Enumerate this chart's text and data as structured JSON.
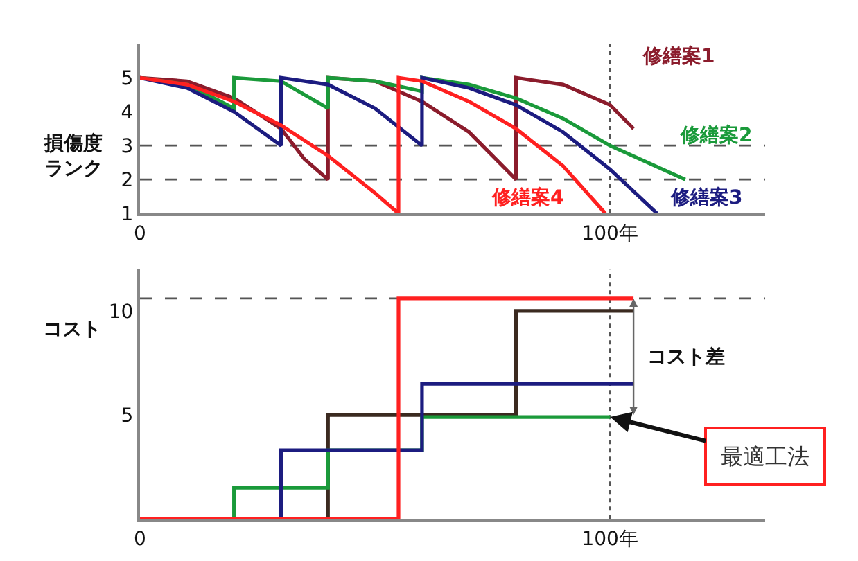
{
  "chart_data": [
    {
      "type": "line",
      "ylabel": "損傷度ランク",
      "xlim": [
        0,
        133
      ],
      "ylim": [
        1,
        6
      ],
      "xticks": [
        0,
        {
          "value": 100,
          "label": "100年"
        }
      ],
      "yticks": [
        1,
        2,
        3,
        4,
        5
      ],
      "grid": false,
      "legend": false,
      "series": [
        {
          "name": "修繕案1",
          "color": "#8b1c2c",
          "x": [
            0,
            10,
            20,
            30,
            35,
            40,
            40,
            50,
            60,
            70,
            80,
            80,
            90,
            100,
            105
          ],
          "values": [
            5,
            4.9,
            4.4,
            3.5,
            2.6,
            2.0,
            5,
            4.9,
            4.3,
            3.4,
            2.0,
            5,
            4.8,
            4.2,
            3.5
          ]
        },
        {
          "name": "修繕案2",
          "color": "#1a9a3a",
          "x": [
            0,
            10,
            20,
            20,
            30,
            40,
            40,
            50,
            60,
            60,
            70,
            80,
            90,
            100,
            116
          ],
          "values": [
            5,
            4.8,
            4.1,
            5,
            4.9,
            4.1,
            5,
            4.9,
            4.6,
            5,
            4.8,
            4.4,
            3.8,
            3.0,
            2.0
          ]
        },
        {
          "name": "修繕案3",
          "color": "#1c1c80",
          "x": [
            0,
            10,
            20,
            30,
            30,
            40,
            50,
            60,
            60,
            70,
            80,
            90,
            100,
            110
          ],
          "values": [
            5,
            4.7,
            4.0,
            3.0,
            5,
            4.8,
            4.1,
            3.0,
            5,
            4.7,
            4.2,
            3.4,
            2.3,
            1.0
          ]
        },
        {
          "name": "修繕案4",
          "color": "#ff2020",
          "x": [
            0,
            10,
            20,
            30,
            40,
            50,
            55,
            55,
            60,
            70,
            80,
            90,
            99
          ],
          "values": [
            5,
            4.8,
            4.3,
            3.6,
            2.7,
            1.6,
            1,
            5,
            4.9,
            4.3,
            3.5,
            2.4,
            1
          ]
        }
      ],
      "ref_lines": [
        {
          "axis": "y",
          "value": 3,
          "color": "#555555",
          "line_style": "dashed"
        },
        {
          "axis": "y",
          "value": 2,
          "color": "#555555",
          "line_style": "dashed"
        },
        {
          "axis": "x",
          "value": 100,
          "color": "#555555",
          "line_style": "dotted"
        }
      ]
    },
    {
      "type": "step",
      "ylabel": "コスト",
      "xlim": [
        0,
        133
      ],
      "ylim": [
        0,
        12
      ],
      "xticks": [
        0,
        {
          "value": 100,
          "label": "100年"
        }
      ],
      "yticks": [
        5,
        10
      ],
      "grid": false,
      "legend": false,
      "series": [
        {
          "color": "#3b2a20",
          "x": [
            0,
            40,
            80,
            105
          ],
          "values": [
            0,
            5,
            10,
            10
          ]
        },
        {
          "color": "#1a9a3a",
          "x": [
            0,
            20,
            40,
            60,
            100
          ],
          "values": [
            0,
            1.5,
            3.3,
            4.9,
            4.9
          ]
        },
        {
          "color": "#1c1c80",
          "x": [
            0,
            30,
            60,
            105
          ],
          "values": [
            0,
            3.3,
            6.5,
            6.5
          ]
        },
        {
          "color": "#ff2020",
          "x": [
            0,
            55,
            105
          ],
          "values": [
            0,
            10.6,
            10.6
          ]
        }
      ],
      "ref_lines": [
        {
          "axis": "y",
          "value": 10.6,
          "color": "#555555",
          "line_style": "dashed"
        },
        {
          "axis": "x",
          "value": 100,
          "color": "#555555",
          "line_style": "dotted"
        }
      ],
      "annotations": [
        "コスト差",
        {
          "text": "最適工法",
          "x": 100,
          "y": 4.9
        }
      ]
    }
  ]
}
